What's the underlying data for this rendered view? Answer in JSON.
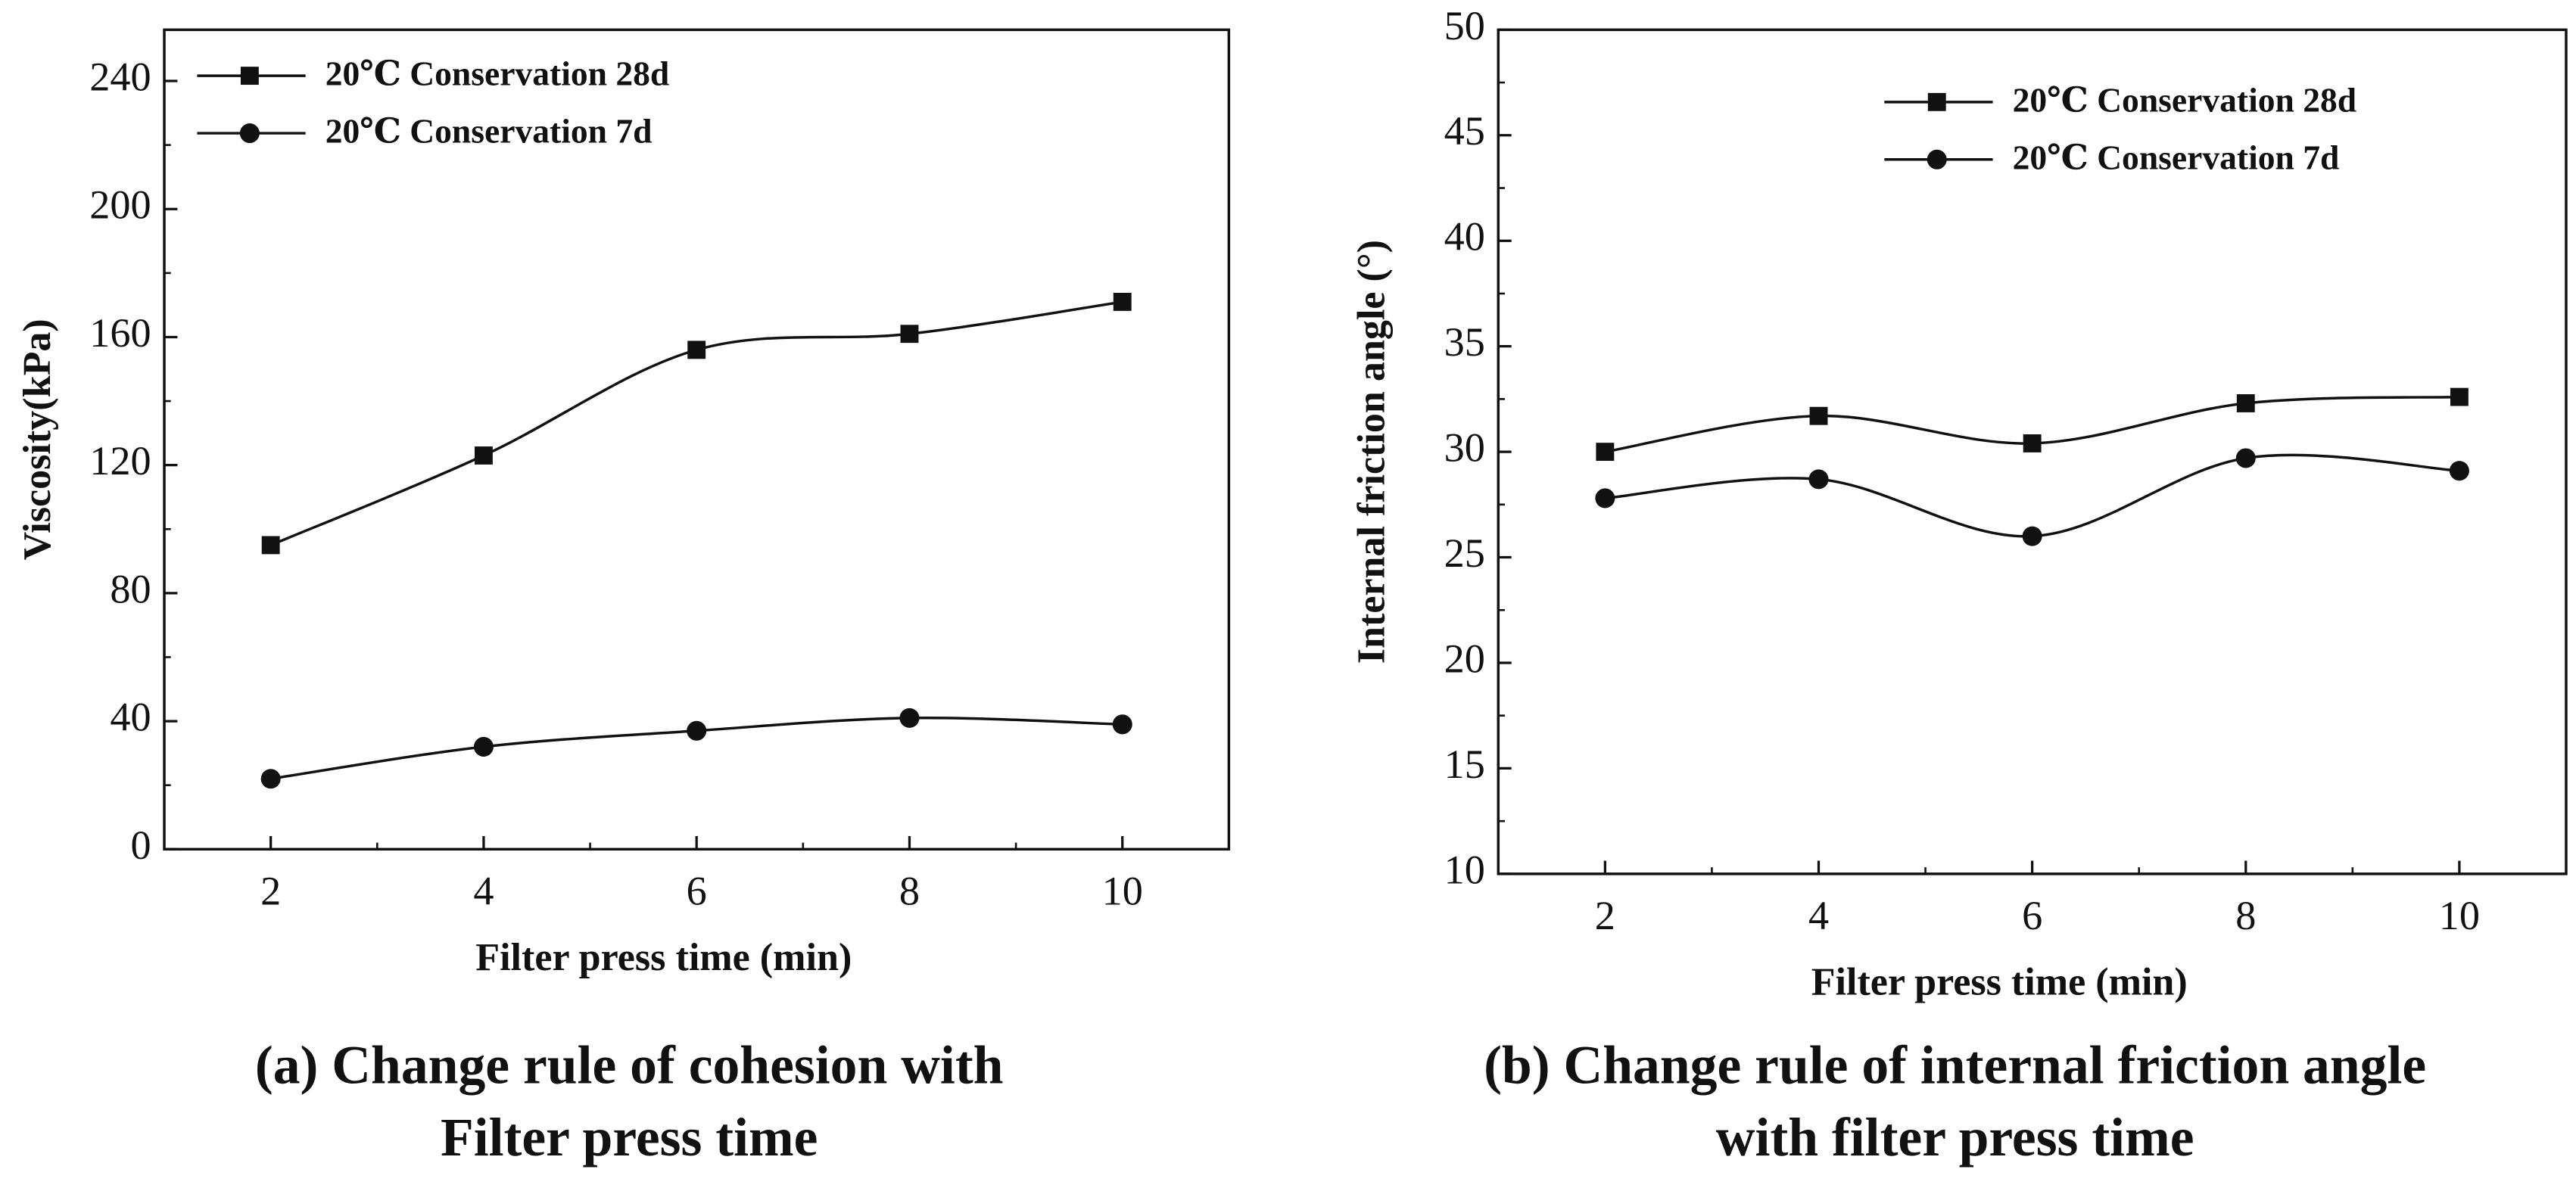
{
  "chart_data": [
    {
      "type": "line",
      "x_label": "Filter press time (min)",
      "y_label": "Viscosity(kPa)",
      "caption": [
        "(a) Change rule of cohesion with",
        "Filter press time"
      ],
      "x": [
        2,
        4,
        6,
        8,
        10
      ],
      "xlim": [
        1,
        11
      ],
      "xticks": [
        2,
        4,
        6,
        8,
        10
      ],
      "ylim": [
        0,
        256
      ],
      "yticks": [
        0,
        40,
        80,
        120,
        160,
        200,
        240
      ],
      "legend": "upper left",
      "series": [
        {
          "name": "20℃ Conservation 28d",
          "color": "#111111",
          "marker": "square",
          "values": [
            95,
            123,
            156,
            161,
            171
          ]
        },
        {
          "name": "20℃ Conservation 7d",
          "color": "#111111",
          "marker": "circle",
          "values": [
            22,
            32,
            37,
            41,
            39
          ]
        }
      ]
    },
    {
      "type": "line",
      "x_label": "Filter press time (min)",
      "y_label": "Internal friction angle (°)",
      "caption": [
        "(b) Change rule of internal friction angle",
        "with filter press time"
      ],
      "x": [
        2,
        4,
        6,
        8,
        10
      ],
      "xlim": [
        1,
        11
      ],
      "xticks": [
        2,
        4,
        6,
        8,
        10
      ],
      "ylim": [
        10,
        50
      ],
      "yticks": [
        10,
        15,
        20,
        25,
        30,
        35,
        40,
        45,
        50
      ],
      "legend": "upper right",
      "series": [
        {
          "name": "20℃ Conservation 28d",
          "color": "#111111",
          "marker": "square",
          "values": [
            30,
            31.7,
            30.4,
            32.3,
            32.6
          ]
        },
        {
          "name": "20℃ Conservation 7d",
          "color": "#111111",
          "marker": "circle",
          "values": [
            27.8,
            28.7,
            26,
            29.7,
            29.1
          ]
        }
      ]
    }
  ]
}
